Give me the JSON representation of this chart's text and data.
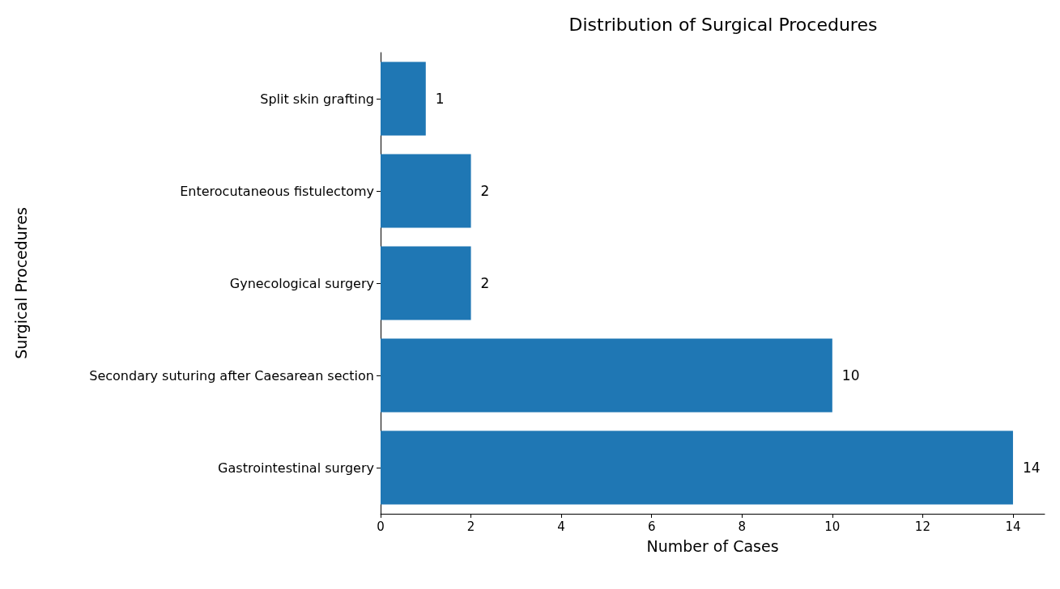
{
  "chart_data": {
    "type": "bar",
    "orientation": "horizontal",
    "title": "Distribution of Surgical Procedures",
    "xlabel": "Number of Cases",
    "ylabel": "Surgical Procedures",
    "categories": [
      "Split skin grafting",
      "Enterocutaneous fistulectomy",
      "Gynecological surgery",
      "Secondary suturing after Caesarean section",
      "Gastrointestinal surgery"
    ],
    "values": [
      1,
      2,
      2,
      10,
      14
    ],
    "color": "#1f77b4",
    "data_labels": true,
    "grid": false,
    "xlim": [
      0,
      14.7
    ],
    "xticks": [
      0,
      2,
      4,
      6,
      8,
      10,
      12,
      14
    ]
  }
}
